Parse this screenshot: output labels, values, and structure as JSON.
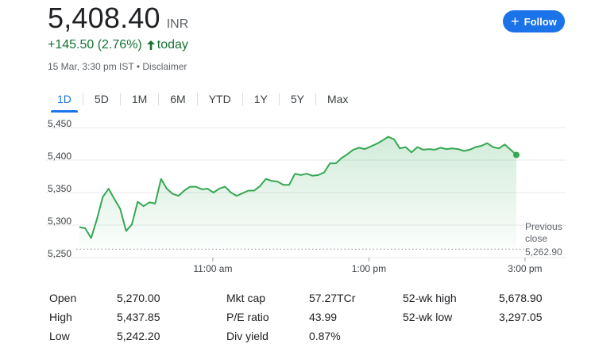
{
  "quote": {
    "price": "5,408.40",
    "currency": "INR",
    "change": "+145.50 (2.76%)",
    "period": "today",
    "timestamp": "15 Mar, 3:30 pm IST",
    "separator": "•",
    "disclaimer": "Disclaimer",
    "up_color": "#137333"
  },
  "follow_button": {
    "label": "Follow",
    "icon": "plus-icon"
  },
  "tabs": [
    {
      "label": "1D",
      "active": true
    },
    {
      "label": "5D"
    },
    {
      "label": "1M"
    },
    {
      "label": "6M"
    },
    {
      "label": "YTD"
    },
    {
      "label": "1Y"
    },
    {
      "label": "5Y"
    },
    {
      "label": "Max"
    }
  ],
  "chart_data": {
    "type": "area",
    "ylim": [
      5250,
      5450
    ],
    "y_ticks": [
      "5,450",
      "5,400",
      "5,350",
      "5,300",
      "5,250"
    ],
    "x_ticks": [
      "11:00 am",
      "1:00 pm",
      "3:00 pm"
    ],
    "previous_close_label": [
      "Previous",
      "close"
    ],
    "previous_close_value": "5,262.90",
    "previous_close": 5262.9,
    "line_color": "#34a853",
    "grid": true,
    "series": [
      {
        "values": [
          5297,
          5295,
          5280,
          5309,
          5343,
          5356,
          5340,
          5325,
          5291,
          5301,
          5336,
          5329,
          5335,
          5333,
          5371,
          5356,
          5348,
          5345,
          5353,
          5359,
          5359,
          5355,
          5356,
          5350,
          5356,
          5359,
          5350,
          5345,
          5349,
          5353,
          5353,
          5360,
          5371,
          5368,
          5367,
          5362,
          5362,
          5379,
          5377,
          5379,
          5376,
          5377,
          5381,
          5395,
          5395,
          5403,
          5409,
          5416,
          5419,
          5417,
          5421,
          5425,
          5430,
          5436,
          5432,
          5418,
          5420,
          5412,
          5420,
          5416,
          5417,
          5416,
          5419,
          5417,
          5418,
          5417,
          5414,
          5416,
          5420,
          5422,
          5426,
          5420,
          5418,
          5424,
          5416,
          5408
        ]
      }
    ]
  },
  "stats": [
    {
      "label": "Open",
      "value": "5,270.00"
    },
    {
      "label": "High",
      "value": "5,437.85"
    },
    {
      "label": "Low",
      "value": "5,242.20"
    },
    {
      "label": "Mkt cap",
      "value": "57.27TCr"
    },
    {
      "label": "P/E ratio",
      "value": "43.99"
    },
    {
      "label": "Div yield",
      "value": "0.87%"
    },
    {
      "label": "52-wk high",
      "value": "5,678.90"
    },
    {
      "label": "52-wk low",
      "value": "3,297.05"
    }
  ]
}
